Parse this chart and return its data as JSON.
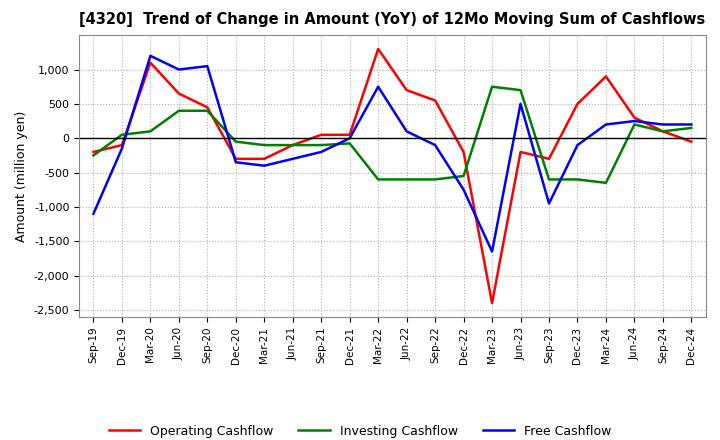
{
  "title": "[4320]  Trend of Change in Amount (YoY) of 12Mo Moving Sum of Cashflows",
  "ylabel": "Amount (million yen)",
  "x_labels": [
    "Sep-19",
    "Dec-19",
    "Mar-20",
    "Jun-20",
    "Sep-20",
    "Dec-20",
    "Mar-21",
    "Jun-21",
    "Sep-21",
    "Dec-21",
    "Mar-22",
    "Jun-22",
    "Sep-22",
    "Dec-22",
    "Mar-23",
    "Jun-23",
    "Sep-23",
    "Dec-23",
    "Mar-24",
    "Jun-24",
    "Sep-24",
    "Dec-24"
  ],
  "operating": [
    -200,
    -100,
    1100,
    650,
    450,
    -300,
    -300,
    -100,
    50,
    50,
    1300,
    700,
    550,
    -200,
    -2400,
    -200,
    -300,
    500,
    900,
    300,
    100,
    -50
  ],
  "investing": [
    -250,
    50,
    100,
    400,
    400,
    -50,
    -100,
    -100,
    -100,
    -75,
    -600,
    -600,
    -600,
    -550,
    750,
    700,
    -600,
    -600,
    -650,
    200,
    100,
    150
  ],
  "free": [
    -1100,
    -150,
    1200,
    1000,
    1050,
    -350,
    -400,
    -300,
    -200,
    0,
    750,
    100,
    -100,
    -750,
    -1650,
    500,
    -950,
    -100,
    200,
    250,
    200,
    200
  ],
  "ylim": [
    -2600,
    1500
  ],
  "yticks": [
    -2500,
    -2000,
    -1500,
    -1000,
    -500,
    0,
    500,
    1000
  ],
  "colors": {
    "operating": "#ff0000",
    "investing": "#008000",
    "free": "#0000ff"
  },
  "grid_color": "#b0b0b0",
  "grid_style": "dotted",
  "background_color": "#ffffff"
}
